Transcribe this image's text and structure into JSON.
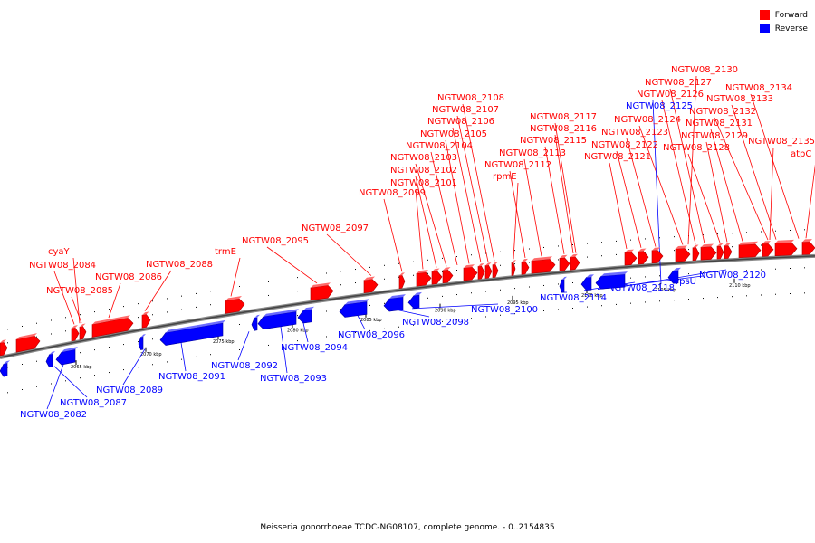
{
  "legend": {
    "forward": {
      "label": "Forward",
      "color": "#ff0000"
    },
    "reverse": {
      "label": "Reverse",
      "color": "#0000ff"
    }
  },
  "caption": "Neisseria gonorrhoeae TCDC-NG08107, complete genome. - 0..2154835",
  "scale_ticks": [
    "2065 kbp",
    "2070 kbp",
    "2075 kbp",
    "2080 kbp",
    "2085 kbp",
    "2090 kbp",
    "2095 kbp",
    "2100 kbp",
    "2105 kbp",
    "2110 kbp"
  ],
  "forward_genes": [
    "NGTW08_2084",
    "cyaY",
    "NGTW08_2085",
    "NGTW08_2086",
    "NGTW08_2088",
    "trmE",
    "NGTW08_2095",
    "NGTW08_2097",
    "NGTW08_2099",
    "NGTW08_2101",
    "NGTW08_2102",
    "NGTW08_2103",
    "NGTW08_2104",
    "NGTW08_2105",
    "NGTW08_2106",
    "NGTW08_2107",
    "NGTW08_2108",
    "rpmE",
    "NGTW08_2112",
    "NGTW08_2113",
    "NGTW08_2115",
    "NGTW08_2116",
    "NGTW08_2117",
    "NGTW08_2121",
    "NGTW08_2122",
    "NGTW08_2123",
    "NGTW08_2124",
    "NGTW08_2126",
    "NGTW08_2127",
    "NGTW08_2128",
    "NGTW08_2129",
    "NGTW08_2130",
    "NGTW08_2131",
    "NGTW08_2132",
    "NGTW08_2133",
    "NGTW08_2134",
    "NGTW08_2135",
    "atpC"
  ],
  "reverse_genes": [
    "NGTW08_2082",
    "NGTW08_2087",
    "NGTW08_2089",
    "NGTW08_2091",
    "NGTW08_2092",
    "NGTW08_2093",
    "NGTW08_2094",
    "NGTW08_2096",
    "NGTW08_2098",
    "NGTW08_2100",
    "NGTW08_2114",
    "NGTW08_2118",
    "rpsU",
    "NGTW08_2120",
    "NGTW08_2125"
  ]
}
